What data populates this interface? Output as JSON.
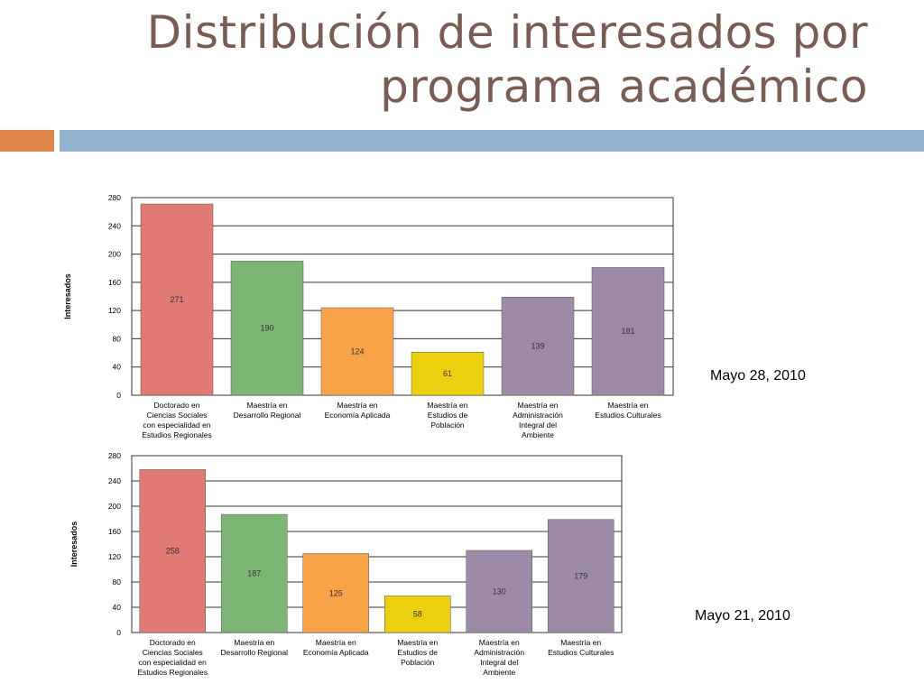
{
  "slide": {
    "title_line1": "Distribución de interesados por",
    "title_line2": "programa académico"
  },
  "colors": {
    "title": "#7a5c52",
    "accent_orange": "#e0844a",
    "accent_blue": "#93b3d1",
    "bar_colors": [
      "#e07a73",
      "#7db575",
      "#f9a349",
      "#ebd00e",
      "#9c8aa6",
      "#9c8aa6"
    ]
  },
  "chart_data": [
    {
      "type": "bar",
      "caption": "Mayo 28, 2010",
      "ylabel": "Interesados",
      "ylim": [
        0,
        280
      ],
      "yticks": [
        0,
        40,
        80,
        120,
        160,
        200,
        240,
        280
      ],
      "grid": true,
      "categories": [
        "Doctorado en Ciencias Sociales con especialidad en Estudios Regionales",
        "Maestría en Desarrollo Regional",
        "Maestría en Economía Aplicada",
        "Maestría en Estudios de Población",
        "Maestría en Administración Integral del Ambiente",
        "Maestría en Estudios Culturales"
      ],
      "category_lines": [
        [
          "Doctorado en",
          "Ciencias Sociales",
          "con especialidad en",
          "Estudios Regionales"
        ],
        [
          "Maestría en",
          "Desarrollo Regional"
        ],
        [
          "Maestría en",
          "Economía Aplicada"
        ],
        [
          "Maestría en",
          "Estudios de",
          "Población"
        ],
        [
          "Maestría en",
          "Administración",
          "Integral del",
          "Ambiente"
        ],
        [
          "Maestría en",
          "Estudios Culturales"
        ]
      ],
      "values": [
        271,
        190,
        124,
        61,
        139,
        181
      ]
    },
    {
      "type": "bar",
      "caption": "Mayo 21, 2010",
      "ylabel": "Interesados",
      "ylim": [
        0,
        280
      ],
      "yticks": [
        0,
        40,
        80,
        120,
        160,
        200,
        240,
        280
      ],
      "grid": true,
      "categories": [
        "Doctorado en Ciencias Sociales con especialidad en Estudios Regionales",
        "Maestría en Desarrollo Regional",
        "Maestría en Economía Aplicada",
        "Maestría en Estudios de Población",
        "Maestría en Administración Integral del Ambiente",
        "Maestría en Estudios Culturales"
      ],
      "category_lines": [
        [
          "Doctorado en",
          "Ciencias Sociales",
          "con especialidad en",
          "Estudios Regionales"
        ],
        [
          "Maestría en",
          "Desarrollo Regional"
        ],
        [
          "Maestría en",
          "Economía Aplicada"
        ],
        [
          "Maestría en",
          "Estudios de",
          "Población"
        ],
        [
          "Maestría en",
          "Administración",
          "Integral del",
          "Ambiente"
        ],
        [
          "Maestría en",
          "Estudios Culturales"
        ]
      ],
      "values": [
        258,
        187,
        125,
        58,
        130,
        179
      ]
    }
  ]
}
